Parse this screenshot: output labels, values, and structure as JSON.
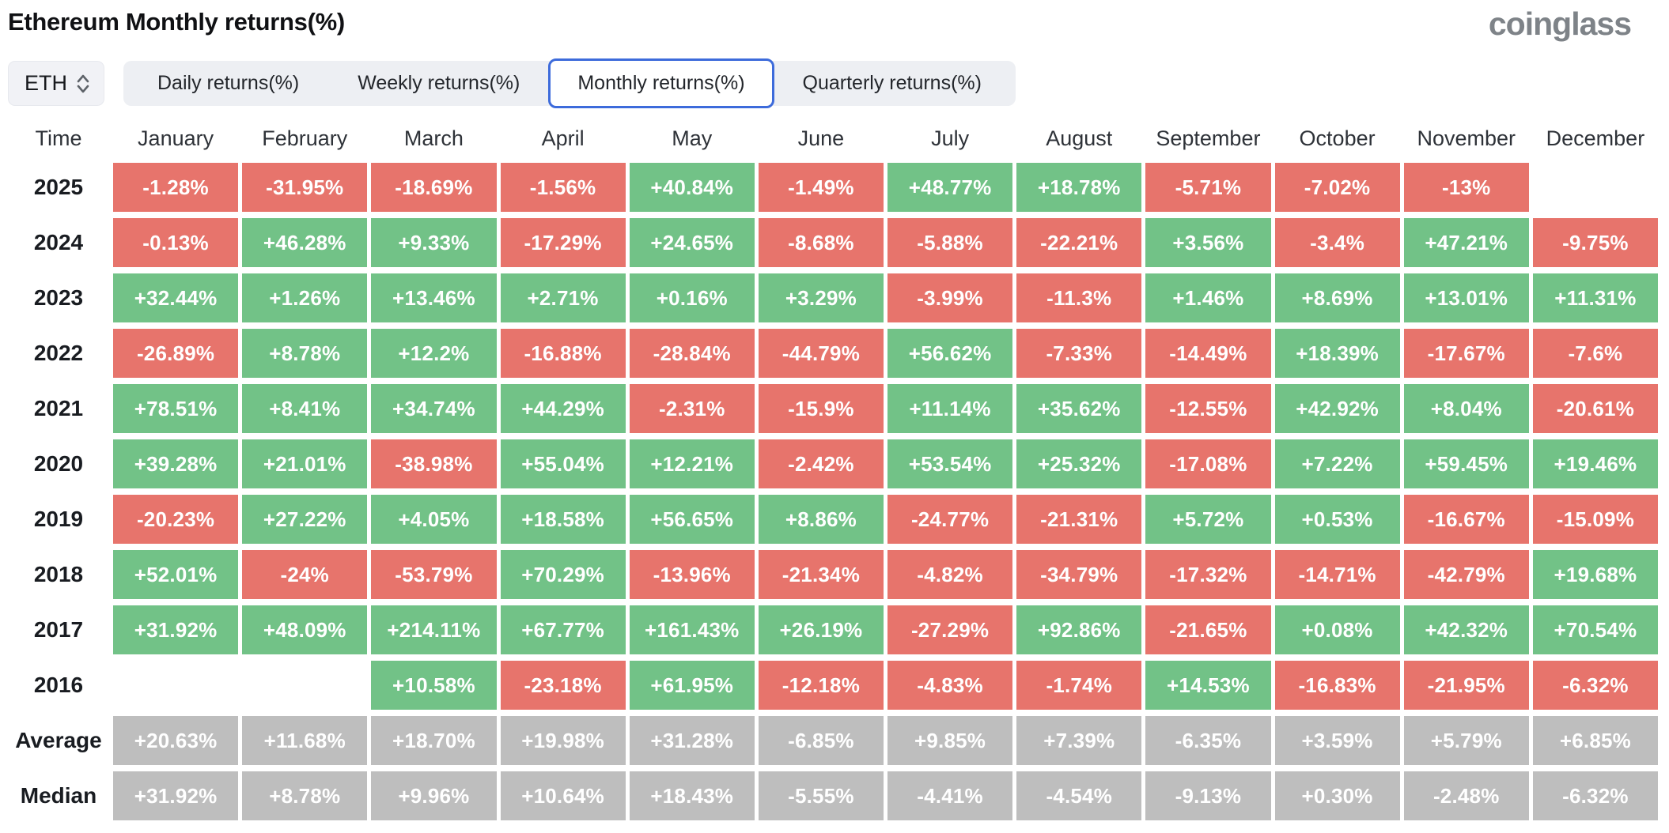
{
  "header": {
    "title": "Ethereum Monthly returns(%)",
    "brand": "coinglass"
  },
  "controls": {
    "symbol": "ETH",
    "symbol_icon": "up-down-chevrons-icon",
    "tabs": [
      {
        "label": "Daily returns(%)",
        "selected": false
      },
      {
        "label": "Weekly returns(%)",
        "selected": false
      },
      {
        "label": "Monthly returns(%)",
        "selected": true
      },
      {
        "label": "Quarterly returns(%)",
        "selected": false
      }
    ]
  },
  "colors": {
    "positive": "#72c287",
    "negative": "#e7746c",
    "summary": "#bebebe",
    "selected_tab_border": "#3d6bdb"
  },
  "chart_data": {
    "type": "table",
    "title": "Ethereum Monthly returns(%)",
    "row_header": "Time",
    "columns": [
      "January",
      "February",
      "March",
      "April",
      "May",
      "June",
      "July",
      "August",
      "September",
      "October",
      "November",
      "December"
    ],
    "rows": [
      {
        "label": "2025",
        "kind": "year",
        "cells": [
          "-1.28%",
          "-31.95%",
          "-18.69%",
          "-1.56%",
          "+40.84%",
          "-1.49%",
          "+48.77%",
          "+18.78%",
          "-5.71%",
          "-7.02%",
          "-13%",
          ""
        ]
      },
      {
        "label": "2024",
        "kind": "year",
        "cells": [
          "-0.13%",
          "+46.28%",
          "+9.33%",
          "-17.29%",
          "+24.65%",
          "-8.68%",
          "-5.88%",
          "-22.21%",
          "+3.56%",
          "-3.4%",
          "+47.21%",
          "-9.75%"
        ]
      },
      {
        "label": "2023",
        "kind": "year",
        "cells": [
          "+32.44%",
          "+1.26%",
          "+13.46%",
          "+2.71%",
          "+0.16%",
          "+3.29%",
          "-3.99%",
          "-11.3%",
          "+1.46%",
          "+8.69%",
          "+13.01%",
          "+11.31%"
        ]
      },
      {
        "label": "2022",
        "kind": "year",
        "cells": [
          "-26.89%",
          "+8.78%",
          "+12.2%",
          "-16.88%",
          "-28.84%",
          "-44.79%",
          "+56.62%",
          "-7.33%",
          "-14.49%",
          "+18.39%",
          "-17.67%",
          "-7.6%"
        ]
      },
      {
        "label": "2021",
        "kind": "year",
        "cells": [
          "+78.51%",
          "+8.41%",
          "+34.74%",
          "+44.29%",
          "-2.31%",
          "-15.9%",
          "+11.14%",
          "+35.62%",
          "-12.55%",
          "+42.92%",
          "+8.04%",
          "-20.61%"
        ]
      },
      {
        "label": "2020",
        "kind": "year",
        "cells": [
          "+39.28%",
          "+21.01%",
          "-38.98%",
          "+55.04%",
          "+12.21%",
          "-2.42%",
          "+53.54%",
          "+25.32%",
          "-17.08%",
          "+7.22%",
          "+59.45%",
          "+19.46%"
        ]
      },
      {
        "label": "2019",
        "kind": "year",
        "cells": [
          "-20.23%",
          "+27.22%",
          "+4.05%",
          "+18.58%",
          "+56.65%",
          "+8.86%",
          "-24.77%",
          "-21.31%",
          "+5.72%",
          "+0.53%",
          "-16.67%",
          "-15.09%"
        ]
      },
      {
        "label": "2018",
        "kind": "year",
        "cells": [
          "+52.01%",
          "-24%",
          "-53.79%",
          "+70.29%",
          "-13.96%",
          "-21.34%",
          "-4.82%",
          "-34.79%",
          "-17.32%",
          "-14.71%",
          "-42.79%",
          "+19.68%"
        ]
      },
      {
        "label": "2017",
        "kind": "year",
        "cells": [
          "+31.92%",
          "+48.09%",
          "+214.11%",
          "+67.77%",
          "+161.43%",
          "+26.19%",
          "-27.29%",
          "+92.86%",
          "-21.65%",
          "+0.08%",
          "+42.32%",
          "+70.54%"
        ]
      },
      {
        "label": "2016",
        "kind": "year",
        "cells": [
          "",
          "",
          "+10.58%",
          "-23.18%",
          "+61.95%",
          "-12.18%",
          "-4.83%",
          "-1.74%",
          "+14.53%",
          "-16.83%",
          "-21.95%",
          "-6.32%"
        ]
      },
      {
        "label": "Average",
        "kind": "summary",
        "cells": [
          "+20.63%",
          "+11.68%",
          "+18.70%",
          "+19.98%",
          "+31.28%",
          "-6.85%",
          "+9.85%",
          "+7.39%",
          "-6.35%",
          "+3.59%",
          "+5.79%",
          "+6.85%"
        ]
      },
      {
        "label": "Median",
        "kind": "summary",
        "cells": [
          "+31.92%",
          "+8.78%",
          "+9.96%",
          "+10.64%",
          "+18.43%",
          "-5.55%",
          "-4.41%",
          "-4.54%",
          "-9.13%",
          "+0.30%",
          "-2.48%",
          "-6.32%"
        ]
      }
    ]
  }
}
